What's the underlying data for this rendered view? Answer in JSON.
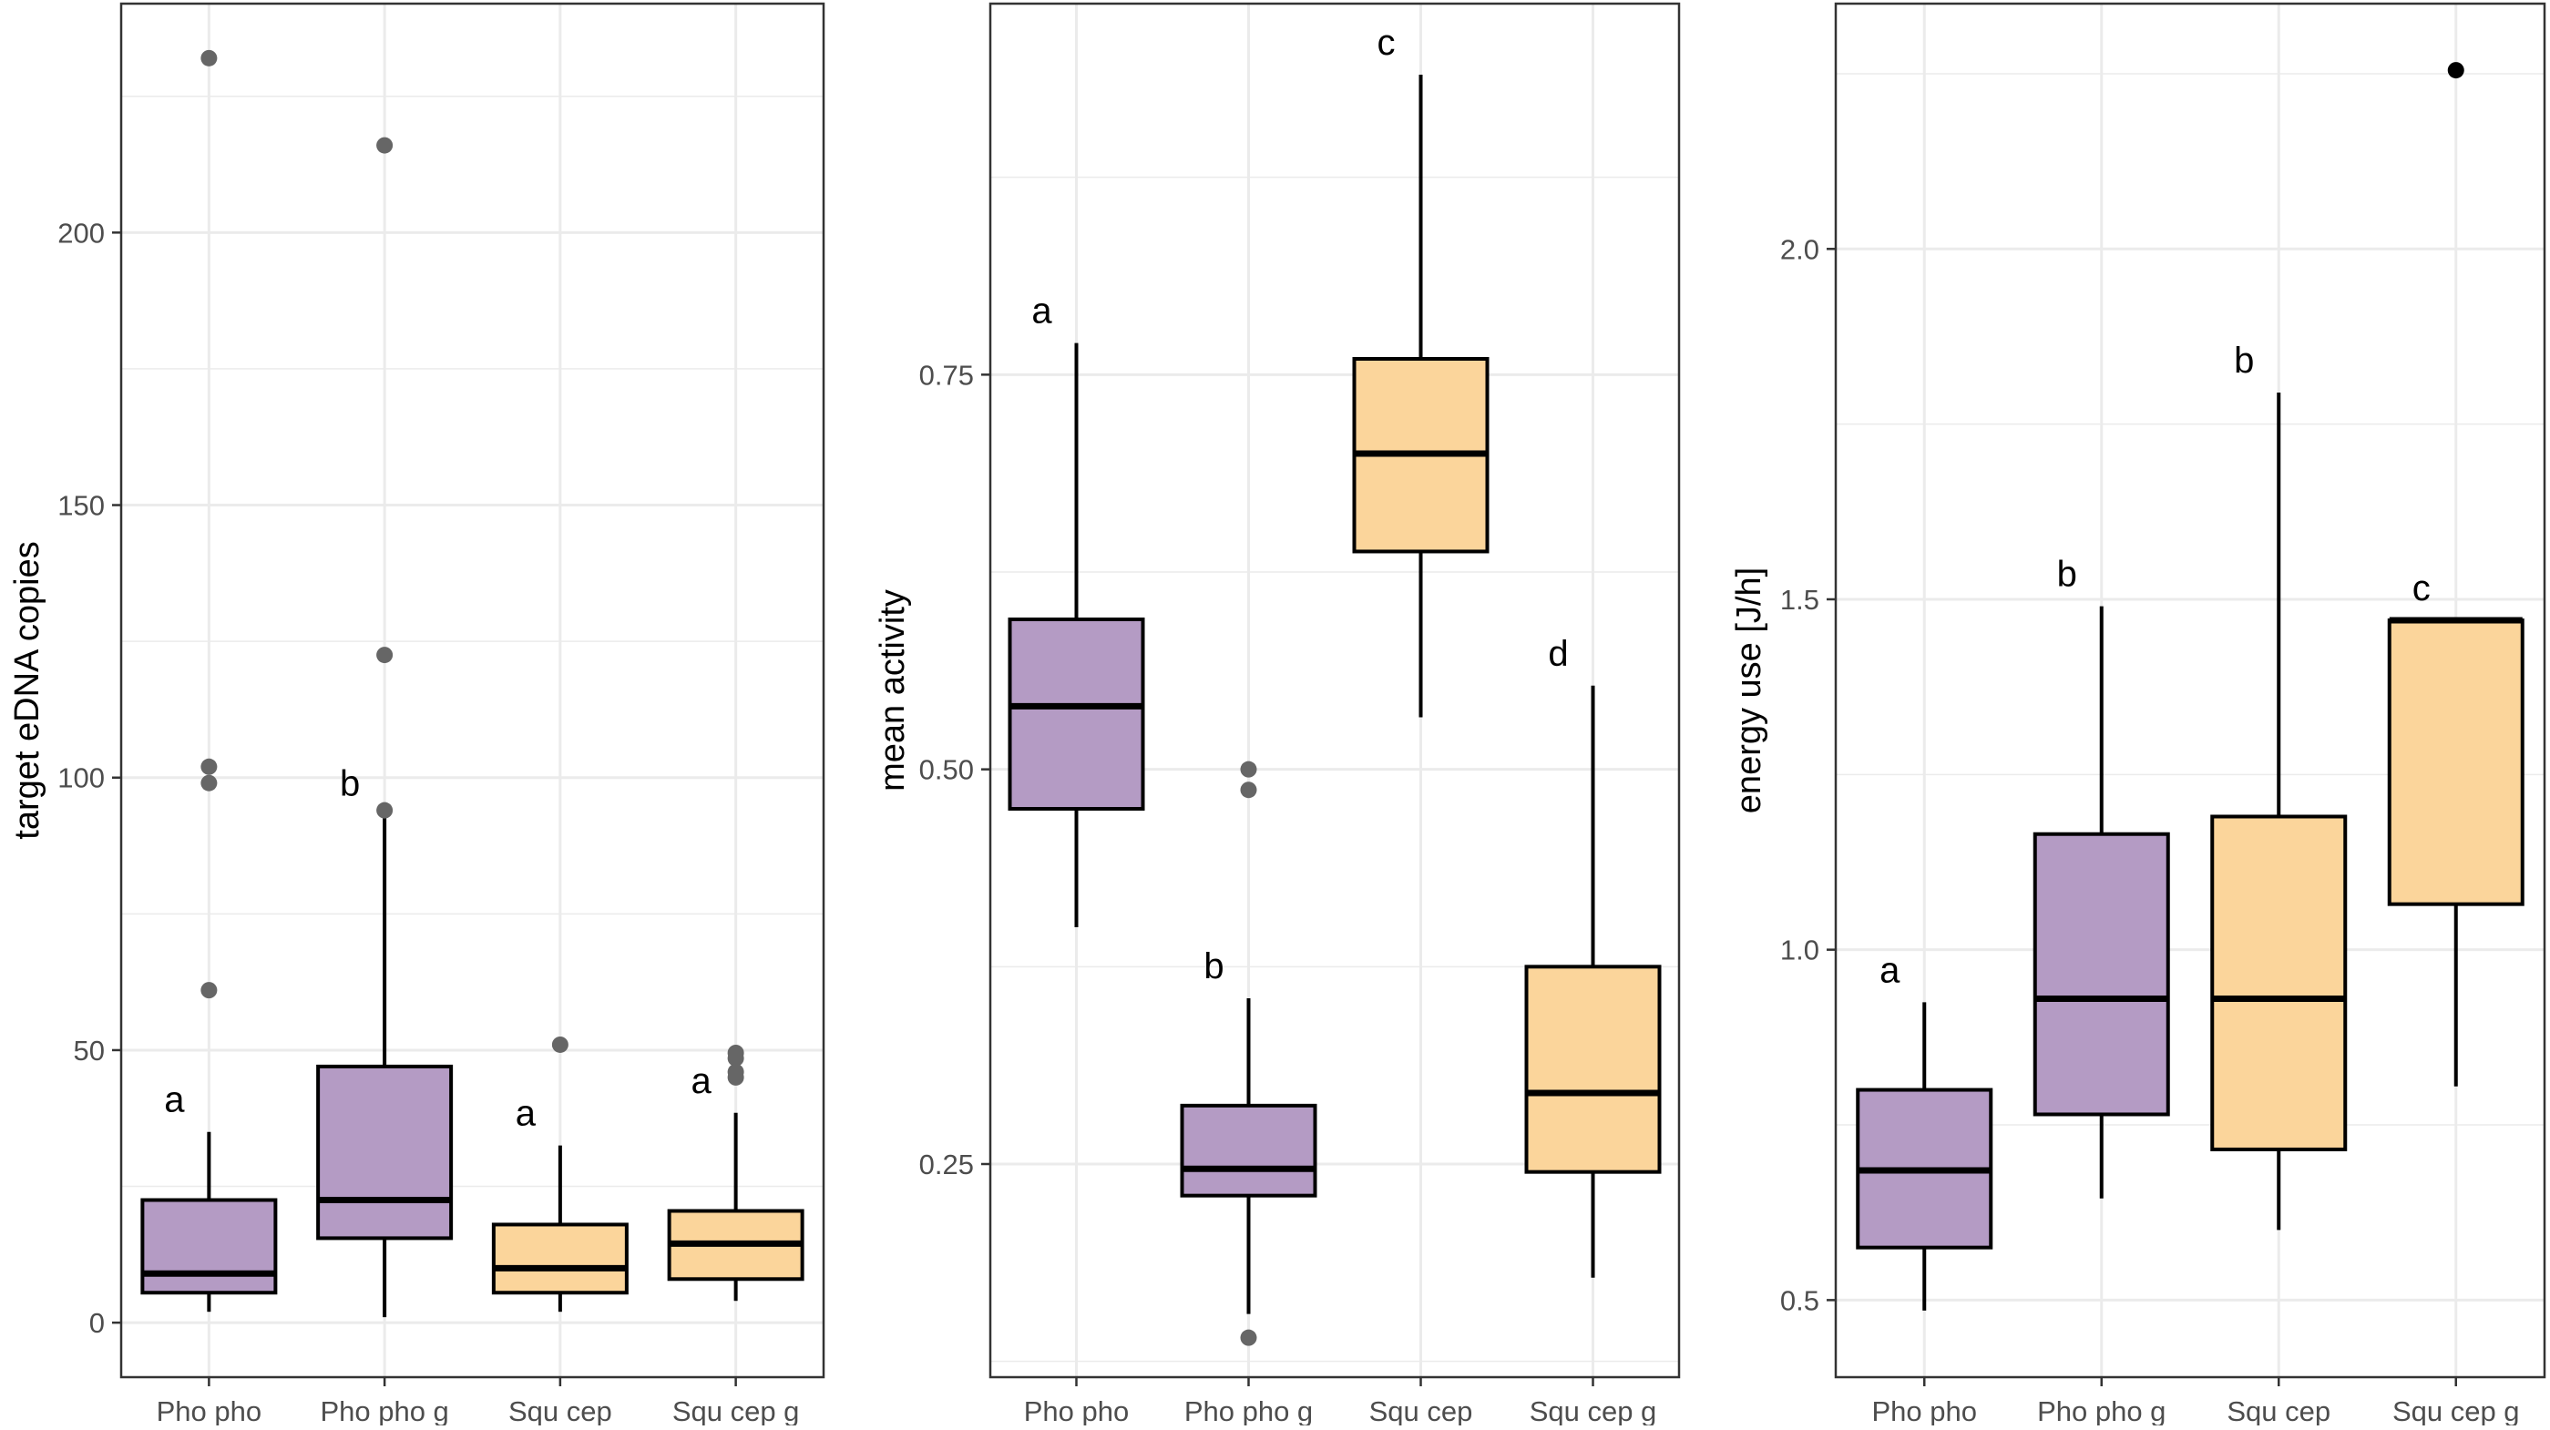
{
  "chart_data": [
    {
      "type": "boxplot",
      "ylabel": "target eDNA copies",
      "xlabel": "",
      "categories": [
        "Pho pho",
        "Pho pho g",
        "Squ cep",
        "Squ cep g"
      ],
      "ylim": [
        -10,
        242
      ],
      "yticks": [
        0,
        50,
        100,
        150,
        200
      ],
      "ytick_labels": [
        "0",
        "50",
        "100",
        "150",
        "200"
      ],
      "grid": true,
      "boxes": [
        {
          "category": "Pho pho",
          "q1": 5.5,
          "median": 9,
          "q3": 22.5,
          "whisker_low": 2,
          "whisker_high": 35,
          "outliers": [
            61,
            99,
            102,
            232
          ],
          "letter": "a",
          "group": "Pho"
        },
        {
          "category": "Pho pho g",
          "q1": 15.5,
          "median": 22.5,
          "q3": 47,
          "whisker_low": 1,
          "whisker_high": 93,
          "outliers": [
            94,
            122.5,
            216
          ],
          "letter": "b",
          "group": "Pho"
        },
        {
          "category": "Squ cep",
          "q1": 5.5,
          "median": 10,
          "q3": 18,
          "whisker_low": 2,
          "whisker_high": 32.5,
          "outliers": [
            51
          ],
          "letter": "a",
          "group": "Squ"
        },
        {
          "category": "Squ cep g",
          "q1": 8,
          "median": 14.5,
          "q3": 20.5,
          "whisker_low": 4,
          "whisker_high": 38.5,
          "outliers": [
            45,
            46,
            48.5,
            49.5
          ],
          "letter": "a",
          "group": "Squ"
        }
      ]
    },
    {
      "type": "boxplot",
      "ylabel": "mean activity",
      "xlabel": "",
      "categories": [
        "Pho pho",
        "Pho pho g",
        "Squ cep",
        "Squ cep g"
      ],
      "ylim": [
        0.115,
        0.985
      ],
      "yticks": [
        0.25,
        0.5,
        0.75
      ],
      "ytick_labels": [
        "0.25",
        "0.50",
        "0.75"
      ],
      "grid": true,
      "boxes": [
        {
          "category": "Pho pho",
          "q1": 0.475,
          "median": 0.54,
          "q3": 0.595,
          "whisker_low": 0.4,
          "whisker_high": 0.77,
          "outliers": [],
          "letter": "a",
          "group": "Pho"
        },
        {
          "category": "Pho pho g",
          "q1": 0.23,
          "median": 0.247,
          "q3": 0.287,
          "whisker_low": 0.155,
          "whisker_high": 0.355,
          "outliers": [
            0.14,
            0.487,
            0.5
          ],
          "letter": "b",
          "group": "Pho"
        },
        {
          "category": "Squ cep",
          "q1": 0.638,
          "median": 0.7,
          "q3": 0.76,
          "whisker_low": 0.533,
          "whisker_high": 0.94,
          "outliers": [],
          "letter": "c",
          "group": "Squ"
        },
        {
          "category": "Squ cep g",
          "q1": 0.245,
          "median": 0.295,
          "q3": 0.375,
          "whisker_low": 0.178,
          "whisker_high": 0.553,
          "outliers": [],
          "letter": "d",
          "group": "Squ"
        }
      ]
    },
    {
      "type": "boxplot",
      "ylabel": "energy use [J/h]",
      "xlabel": "",
      "categories": [
        "Pho pho",
        "Pho pho g",
        "Squ cep",
        "Squ cep g"
      ],
      "ylim": [
        0.39,
        2.35
      ],
      "yticks": [
        0.5,
        1.0,
        1.5,
        2.0
      ],
      "ytick_labels": [
        "0.5",
        "1.0",
        "1.5",
        "2.0"
      ],
      "grid": true,
      "boxes": [
        {
          "category": "Pho pho",
          "q1": 0.575,
          "median": 0.685,
          "q3": 0.8,
          "whisker_low": 0.485,
          "whisker_high": 0.925,
          "outliers": [],
          "letter": "a",
          "group": "Pho"
        },
        {
          "category": "Pho pho g",
          "q1": 0.765,
          "median": 0.93,
          "q3": 1.165,
          "whisker_low": 0.645,
          "whisker_high": 1.49,
          "outliers": [],
          "letter": "b",
          "group": "Pho"
        },
        {
          "category": "Squ cep",
          "q1": 0.715,
          "median": 0.93,
          "q3": 1.19,
          "whisker_low": 0.6,
          "whisker_high": 1.795,
          "outliers": [],
          "letter": "b",
          "group": "Squ"
        },
        {
          "category": "Squ cep g",
          "q1": 1.065,
          "median": 1.47,
          "q3": 1.47,
          "whisker_low": 0.805,
          "whisker_high": 1.47,
          "outliers": [
            2.255
          ],
          "letter": "c",
          "group": "Squ"
        }
      ]
    }
  ],
  "colors": {
    "Pho": "#b49bc4",
    "Squ": "#fbd59b",
    "outline": "#000000",
    "grid": "#ebebeb",
    "outlier": "#666666",
    "outlier_panel3": "#000000"
  }
}
